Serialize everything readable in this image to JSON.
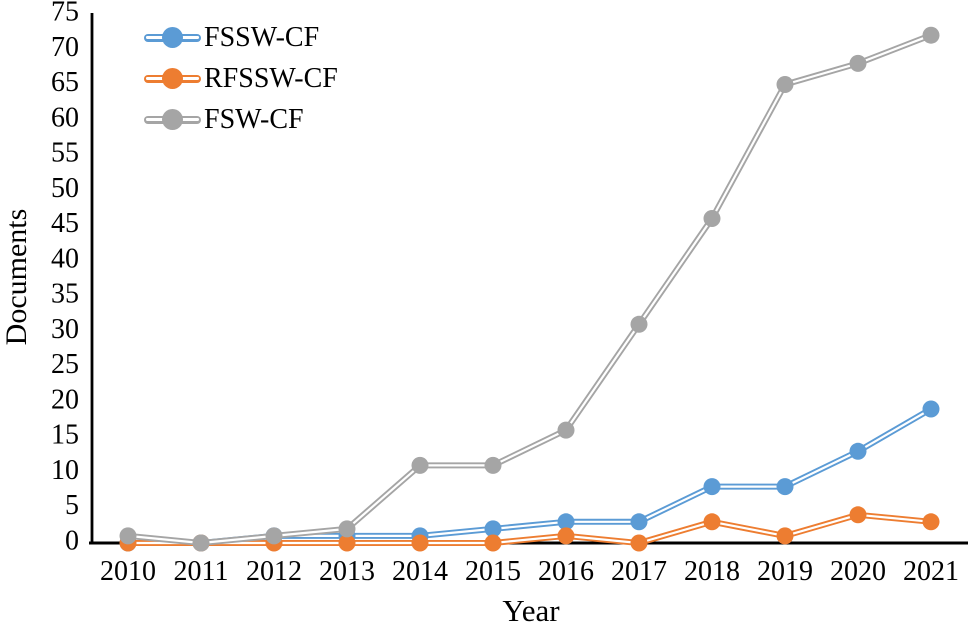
{
  "chart_data": {
    "type": "line",
    "title": "",
    "xlabel": "Year",
    "ylabel": "Documents",
    "x_categories": [
      "2010",
      "2011",
      "2012",
      "2013",
      "2014",
      "2015",
      "2016",
      "2017",
      "2018",
      "2019",
      "2020",
      "2021"
    ],
    "y_ticks": [
      0,
      5,
      10,
      15,
      20,
      25,
      30,
      35,
      40,
      45,
      50,
      55,
      60,
      65,
      70,
      75
    ],
    "ylim": [
      0,
      75
    ],
    "grid": false,
    "legend_position": "top-left",
    "axis_color": "#000000",
    "line_style": "double-stroke-with-white-core",
    "marker": "circle",
    "series": [
      {
        "name": "FSSW-CF",
        "color": "#5B9BD5",
        "values": [
          0,
          0,
          1,
          1,
          1,
          2,
          3,
          3,
          8,
          8,
          13,
          19
        ]
      },
      {
        "name": "RFSSW-CF",
        "color": "#ED7D31",
        "values": [
          0,
          0,
          0,
          0,
          0,
          0,
          1,
          0,
          3,
          1,
          4,
          3
        ]
      },
      {
        "name": "FSW-CF",
        "color": "#A5A5A5",
        "values": [
          1,
          0,
          1,
          2,
          11,
          11,
          16,
          31,
          46,
          65,
          68,
          72
        ]
      }
    ]
  }
}
